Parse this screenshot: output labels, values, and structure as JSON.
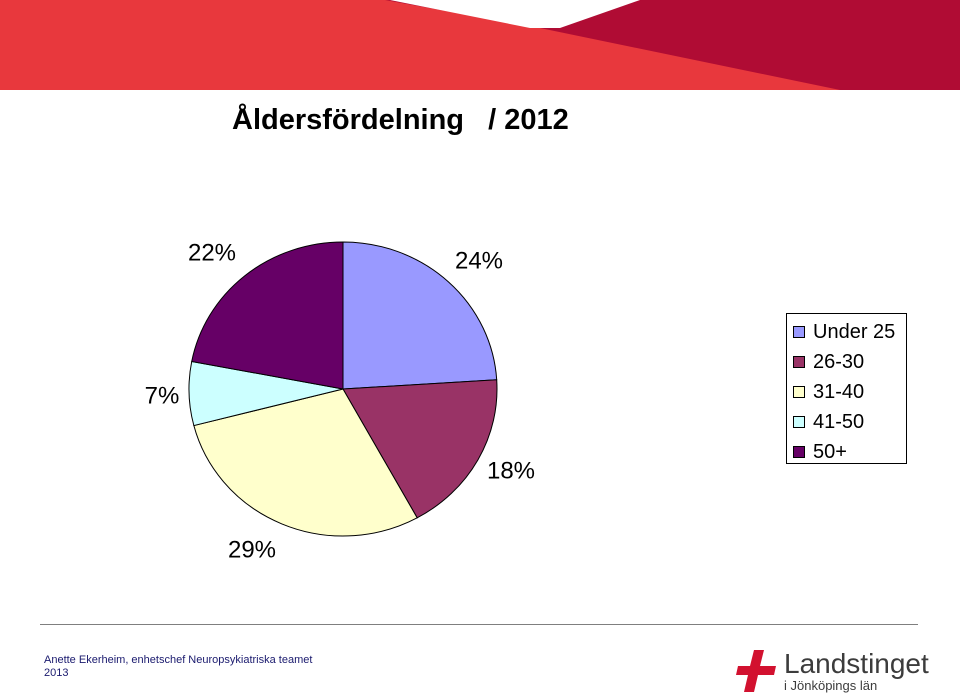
{
  "header": {
    "colors": {
      "banner_left": "#e8383d",
      "banner_right": "#b00c34"
    }
  },
  "chart_data": {
    "type": "pie",
    "title": "Åldersfördelning   / 2012",
    "categories": [
      "Under 25",
      "26-30",
      "31-40",
      "41-50",
      "50+"
    ],
    "values": [
      24,
      18,
      29,
      7,
      22
    ],
    "data_labels": [
      "24%",
      "18%",
      "29%",
      "7%",
      "22%"
    ],
    "colors": [
      "#9999ff",
      "#993366",
      "#ffffcc",
      "#ccffff",
      "#660066"
    ],
    "legend_position": "right"
  },
  "footer": {
    "author_line": "Anette Ekerheim, enhetschef Neuropsykiatriska teamet",
    "year": "2013",
    "logo_name": "Landstinget",
    "logo_subtitle": "i Jönköpings län",
    "logo_icon": "red-cross-logo-icon"
  }
}
